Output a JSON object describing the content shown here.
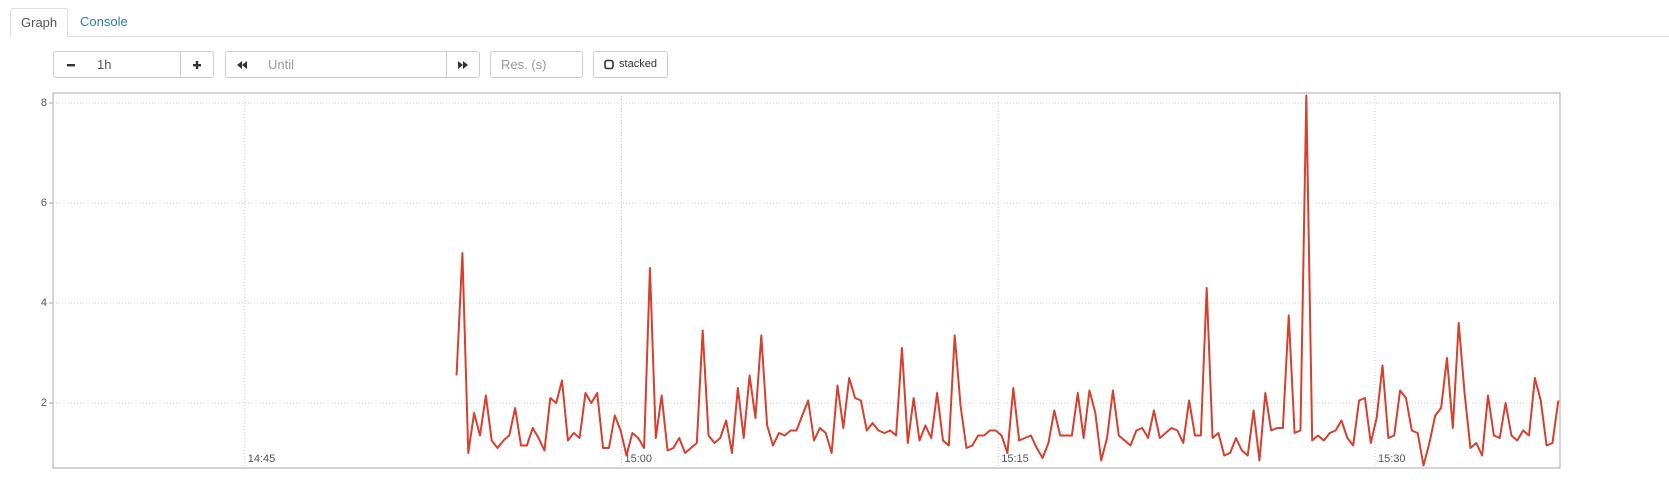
{
  "tabs": [
    "Graph",
    "Console"
  ],
  "controls": {
    "range": "1h",
    "until_placeholder": "Until",
    "resolution_placeholder": "Res. (s)",
    "stacked": "stacked"
  },
  "chart_data": {
    "type": "line",
    "x": [
      53606,
      53620,
      53634,
      53648,
      53662,
      53676,
      53690,
      53704,
      53718,
      53732,
      53746,
      53760,
      53774,
      53788,
      53802,
      53816,
      53830,
      53844,
      53858,
      53872,
      53886,
      53900,
      53914,
      53928,
      53942,
      53956,
      53970,
      53984,
      53998,
      54012,
      54026,
      54040,
      54054,
      54068,
      54082,
      54096,
      54110,
      54124,
      54138,
      54152,
      54166,
      54180,
      54194,
      54208,
      54222,
      54236,
      54250,
      54264,
      54278,
      54292,
      54306,
      54320,
      54334,
      54348,
      54362,
      54376,
      54390,
      54404,
      54418,
      54432,
      54446,
      54460,
      54474,
      54488,
      54502,
      54516,
      54530,
      54544,
      54558,
      54572,
      54586,
      54600,
      54614,
      54628,
      54642,
      54656,
      54670,
      54684,
      54698,
      54712,
      54726,
      54740,
      54754,
      54768,
      54782,
      54796,
      54810,
      54824,
      54838,
      54852,
      54866,
      54880,
      54894,
      54908,
      54922,
      54936,
      54950,
      54964,
      54978,
      54992,
      55006,
      55020,
      55034,
      55048,
      55062,
      55076,
      55090,
      55104,
      55118,
      55132,
      55146,
      55160,
      55174,
      55188,
      55202,
      55216,
      55230,
      55244,
      55258,
      55272,
      55286,
      55300,
      55314,
      55328,
      55342,
      55356,
      55370,
      55384,
      55398,
      55412,
      55426,
      55440,
      55454,
      55468,
      55482,
      55496,
      55510,
      55524,
      55538,
      55552,
      55566,
      55580,
      55594,
      55608,
      55622,
      55636,
      55650,
      55664,
      55678,
      55692,
      55706,
      55720,
      55734,
      55748,
      55762,
      55776,
      55790,
      55804,
      55818,
      55832,
      55846,
      55860,
      55874,
      55888,
      55902,
      55916,
      55930,
      55944,
      55958,
      55972,
      55986,
      56000,
      56014,
      56028,
      56042,
      56056,
      56070,
      56084,
      56098,
      56112,
      56126,
      56140,
      56154,
      56168,
      56182,
      56196,
      56210,
      56224,
      56238
    ],
    "series": [
      {
        "color": "#d6402e",
        "values": [
          2.55,
          5.0,
          1.0,
          1.8,
          1.35,
          2.15,
          1.25,
          1.1,
          1.25,
          1.35,
          1.9,
          1.15,
          1.15,
          1.5,
          1.3,
          1.05,
          2.1,
          2.0,
          2.45,
          1.25,
          1.4,
          1.3,
          2.2,
          2.0,
          2.2,
          1.1,
          1.1,
          1.75,
          1.45,
          0.95,
          1.4,
          1.3,
          1.1,
          4.7,
          1.3,
          2.15,
          1.05,
          1.1,
          1.3,
          1.0,
          1.1,
          1.2,
          3.45,
          1.35,
          1.2,
          1.3,
          1.65,
          1.0,
          2.3,
          1.3,
          2.55,
          1.7,
          3.35,
          1.55,
          1.15,
          1.4,
          1.35,
          1.45,
          1.45,
          1.75,
          2.05,
          1.25,
          1.5,
          1.4,
          1.0,
          2.35,
          1.5,
          2.5,
          2.1,
          2.05,
          1.45,
          1.6,
          1.45,
          1.4,
          1.45,
          1.35,
          3.1,
          1.2,
          2.1,
          1.25,
          1.55,
          1.3,
          2.2,
          1.25,
          1.15,
          3.35,
          1.95,
          1.1,
          1.15,
          1.35,
          1.35,
          1.45,
          1.45,
          1.35,
          1.0,
          2.3,
          1.25,
          1.3,
          1.35,
          1.1,
          0.9,
          1.2,
          1.85,
          1.35,
          1.35,
          1.35,
          2.2,
          1.3,
          2.25,
          1.8,
          0.85,
          1.3,
          2.25,
          1.35,
          1.25,
          1.15,
          1.45,
          1.5,
          1.3,
          1.85,
          1.3,
          1.4,
          1.5,
          1.45,
          1.2,
          2.05,
          1.35,
          1.35,
          4.3,
          1.3,
          1.4,
          0.95,
          1.0,
          1.3,
          1.05,
          0.95,
          1.85,
          0.85,
          2.2,
          1.45,
          1.5,
          1.5,
          3.75,
          1.4,
          1.45,
          8.15,
          1.25,
          1.35,
          1.25,
          1.4,
          1.45,
          1.65,
          1.3,
          1.15,
          2.05,
          2.1,
          1.2,
          1.7,
          2.75,
          1.3,
          1.35,
          2.25,
          2.1,
          1.45,
          1.4,
          0.75,
          1.2,
          1.75,
          1.9,
          2.9,
          1.5,
          3.6,
          2.2,
          1.1,
          1.2,
          0.95,
          2.15,
          1.35,
          1.3,
          2.0,
          1.35,
          1.25,
          1.45,
          1.35,
          2.5,
          2.05,
          1.15,
          1.2,
          2.05
        ]
      }
    ],
    "xlim": [
      52642,
      56242
    ],
    "xticks": [
      {
        "value": 53100,
        "label": "14:45"
      },
      {
        "value": 54000,
        "label": "15:00"
      },
      {
        "value": 54900,
        "label": "15:15"
      },
      {
        "value": 55800,
        "label": "15:30"
      }
    ],
    "ylim": [
      0.7,
      8.2
    ],
    "yticks": [
      2,
      4,
      6,
      8
    ],
    "grid": true
  }
}
